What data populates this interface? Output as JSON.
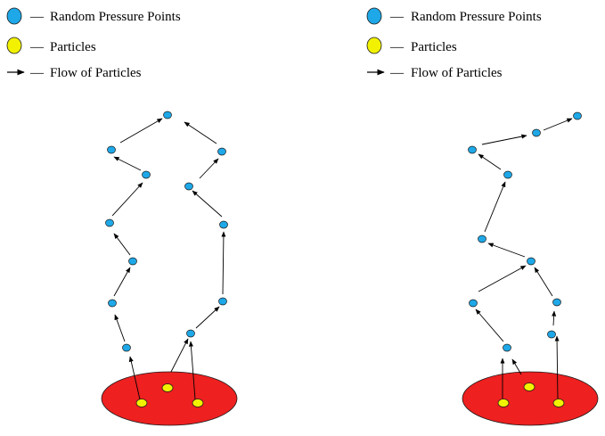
{
  "legend": {
    "items": [
      {
        "label": "Random Pressure Points",
        "dash": "—",
        "icon": "blue-circle-icon"
      },
      {
        "label": "Particles",
        "dash": "—",
        "icon": "yellow-circle-icon"
      },
      {
        "label": "Flow of Particles",
        "dash": "—",
        "icon": "arrow-right-icon"
      }
    ]
  },
  "colors": {
    "pressure_point_fill": "#1ea8e8",
    "particle_fill": "#f2f200",
    "source_fill": "#ee2020",
    "outline": "#1a1a1a",
    "arrow": "#000000"
  }
}
